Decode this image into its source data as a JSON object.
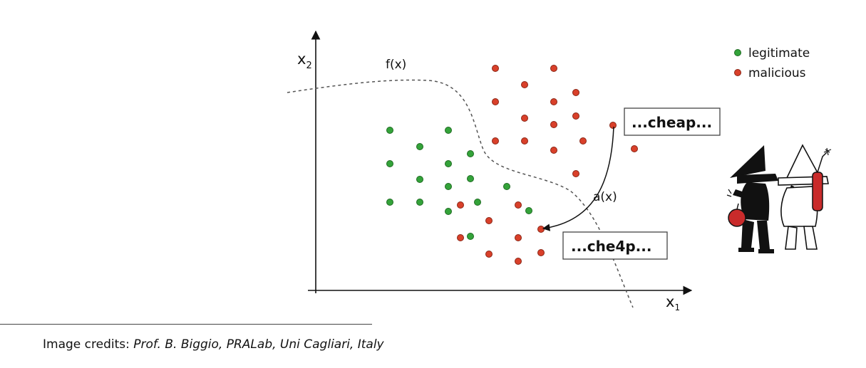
{
  "diagram": {
    "y_axis_label_base": "x",
    "y_axis_label_sub": "2",
    "x_axis_label_base": "x",
    "x_axis_label_sub": "1",
    "boundary_label": "f(x)",
    "attack_label": "a(x)",
    "original_box": "...cheap...",
    "modified_box": "...che4p...",
    "colors": {
      "legitimate": "#34a33a",
      "malicious": "#d9402a",
      "axis": "#111111"
    },
    "icons": {
      "spies": "spy-vs-spy-illustration-icon"
    }
  },
  "legend": {
    "items": [
      {
        "label": "legitimate",
        "color": "#34a33a"
      },
      {
        "label": "malicious",
        "color": "#d9402a"
      }
    ]
  },
  "credits": {
    "prefix": "Image credits: ",
    "source": "Prof. B. Biggio, PRALab, Uni Cagliari, Italy"
  }
}
